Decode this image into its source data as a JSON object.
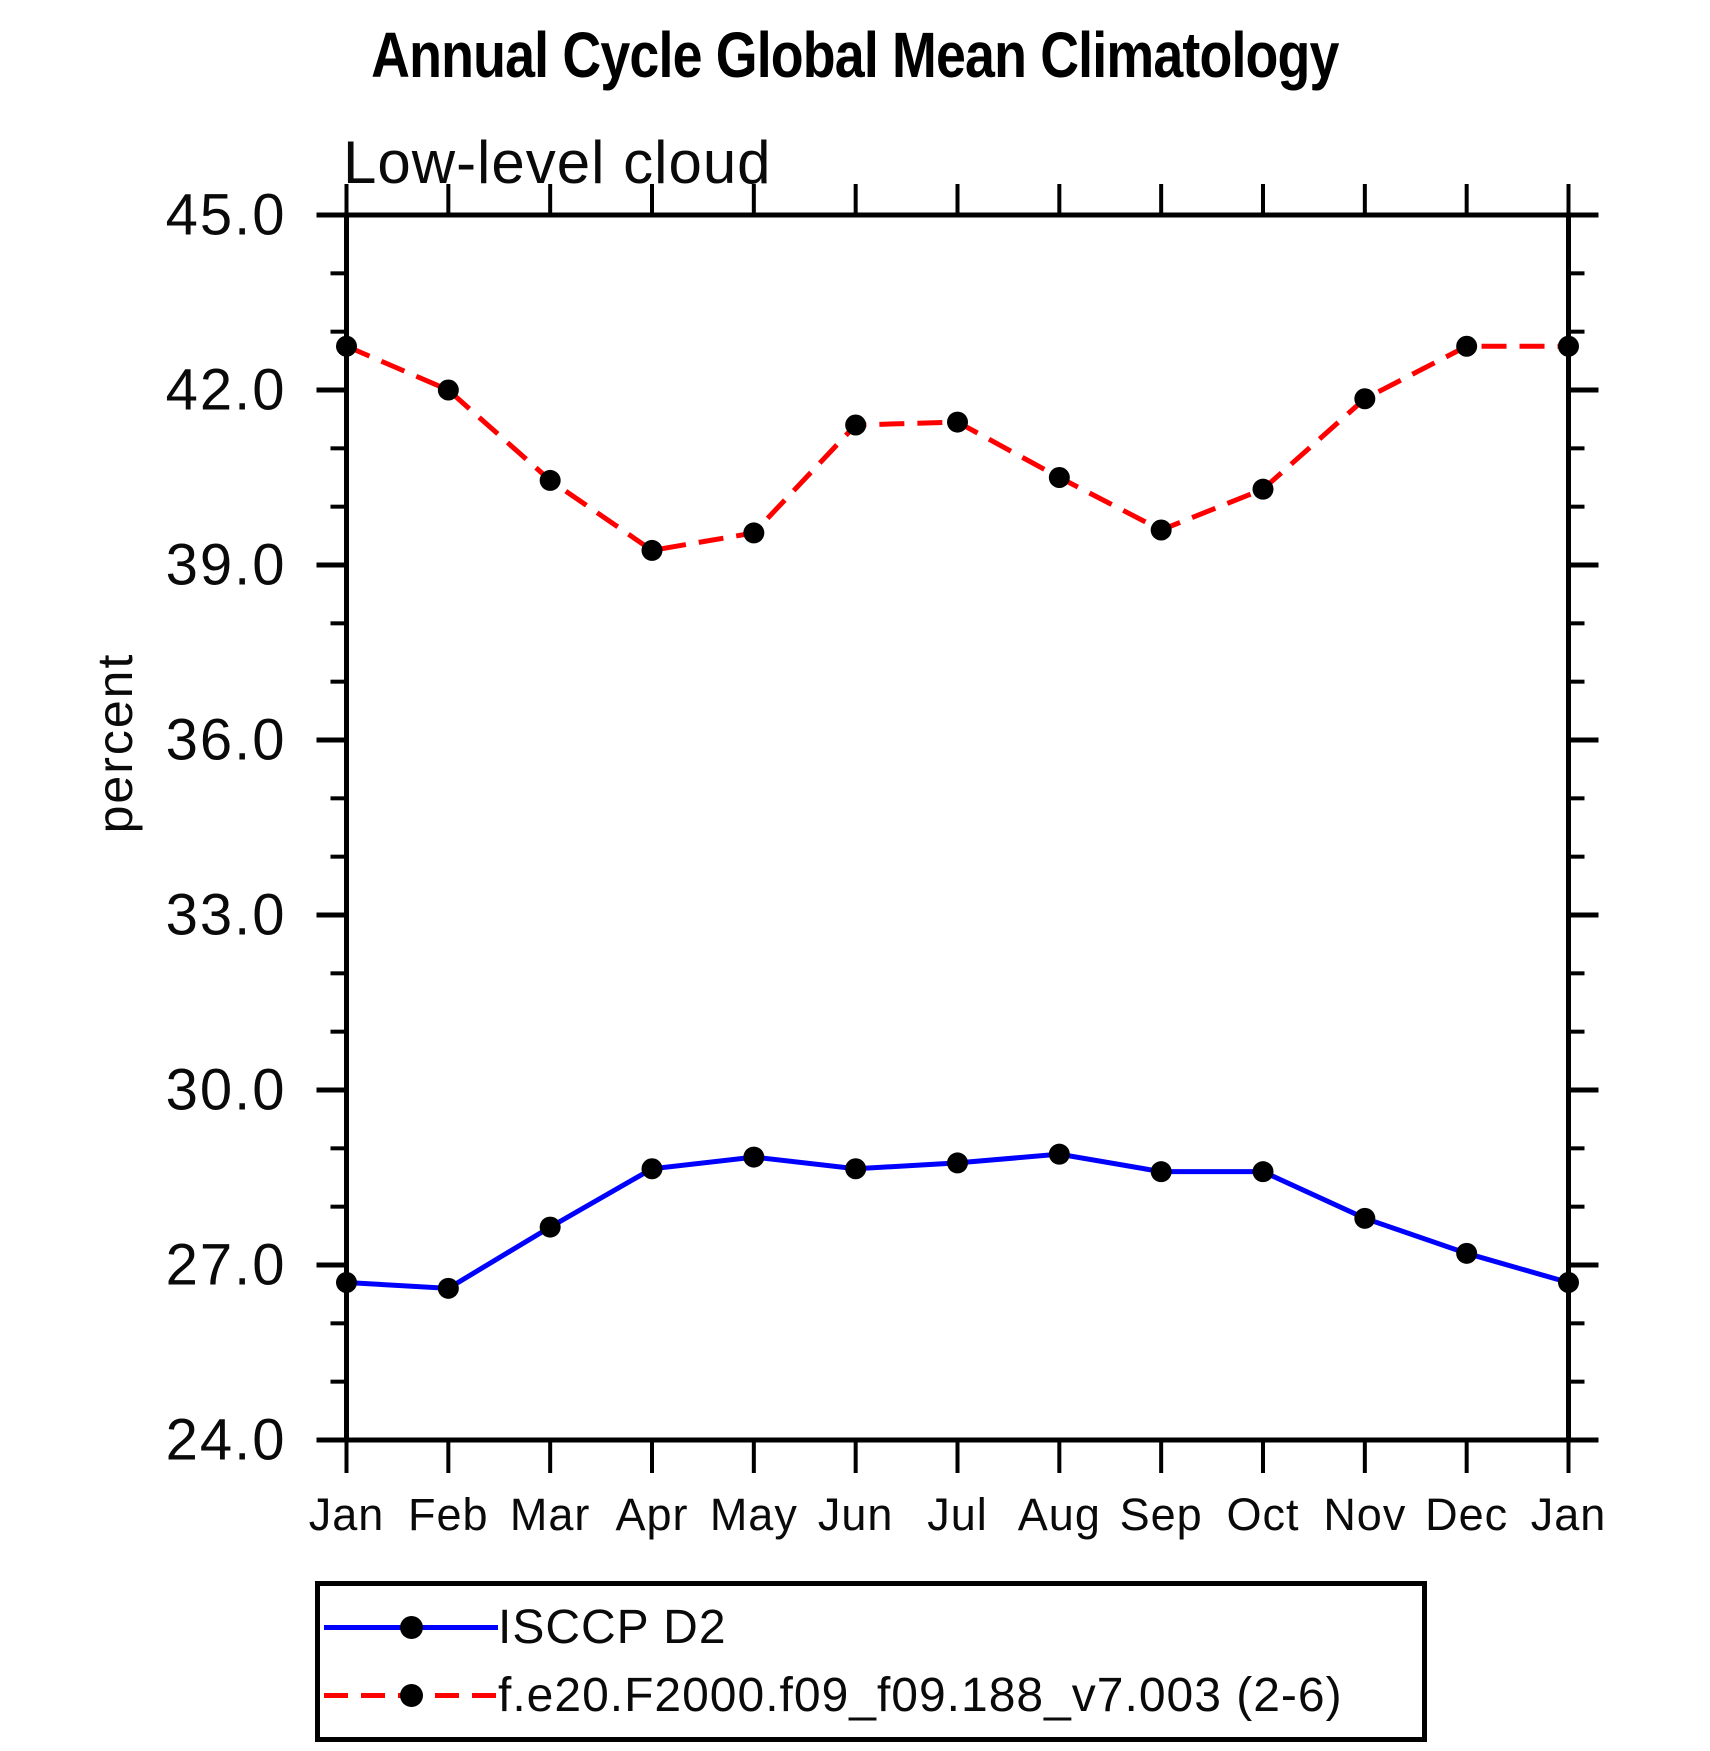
{
  "chart_data": {
    "type": "line",
    "title": "Annual Cycle Global Mean Climatology",
    "subtitle": "Low-level cloud",
    "xlabel": "",
    "ylabel": "percent",
    "categories": [
      "Jan",
      "Feb",
      "Mar",
      "Apr",
      "May",
      "Jun",
      "Jul",
      "Aug",
      "Sep",
      "Oct",
      "Nov",
      "Dec",
      "Jan"
    ],
    "ylim": [
      24.0,
      45.0
    ],
    "ytick_labels": [
      "24.0",
      "27.0",
      "30.0",
      "33.0",
      "36.0",
      "39.0",
      "42.0",
      "45.0"
    ],
    "ytick_major_step": 3.0,
    "ytick_minor_step": 1.0,
    "grid": false,
    "legend_position": "bottom-left-box",
    "series": [
      {
        "name": "ISCCP D2",
        "color": "#0000ff",
        "line_style": "solid",
        "marker": "filled-circle",
        "marker_color": "#000000",
        "values": [
          26.7,
          26.6,
          27.65,
          28.65,
          28.85,
          28.65,
          28.75,
          28.9,
          28.6,
          28.6,
          27.8,
          27.2,
          26.7
        ]
      },
      {
        "name": "f.e20.F2000.f09_f09.188_v7.003 (2-6)",
        "color": "#ff0000",
        "line_style": "dashed",
        "marker": "filled-circle",
        "marker_color": "#000000",
        "values": [
          42.75,
          42.0,
          40.45,
          39.25,
          39.55,
          41.4,
          41.45,
          40.5,
          39.6,
          40.3,
          41.85,
          42.75,
          42.75
        ]
      }
    ]
  }
}
